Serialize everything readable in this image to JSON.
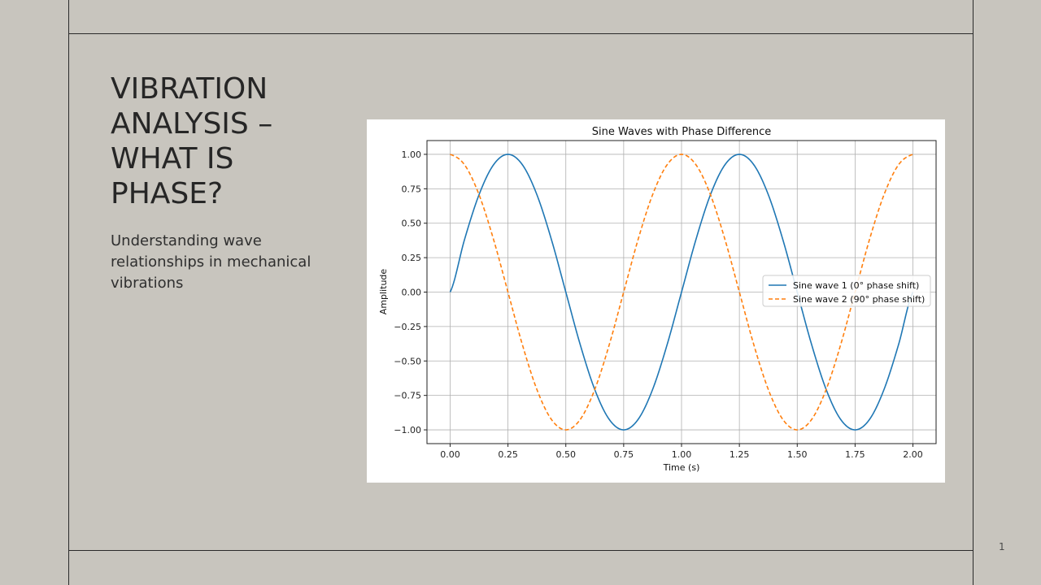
{
  "slide": {
    "title": "VIBRATION ANALYSIS – WHAT IS PHASE?",
    "subtitle": "Understanding wave relationships in mechanical vibrations",
    "page_number": "1"
  },
  "colors": {
    "background": "#c8c5be",
    "rule_lines": "#2a2a2a",
    "series1": "#1f77b4",
    "series2": "#ff7f0e"
  },
  "chart_data": {
    "type": "line",
    "title": "Sine Waves with Phase Difference",
    "xlabel": "Time (s)",
    "ylabel": "Amplitude",
    "xlim": [
      -0.1,
      2.1
    ],
    "ylim": [
      -1.1,
      1.1
    ],
    "x_ticks": [
      0.0,
      0.25,
      0.5,
      0.75,
      1.0,
      1.25,
      1.5,
      1.75,
      2.0
    ],
    "x_tick_labels": [
      "0.00",
      "0.25",
      "0.50",
      "0.75",
      "1.00",
      "1.25",
      "1.50",
      "1.75",
      "2.00"
    ],
    "y_ticks": [
      1.0,
      0.75,
      0.5,
      0.25,
      0.0,
      -0.25,
      -0.5,
      -0.75,
      -1.0
    ],
    "y_tick_labels": [
      "1.00",
      "0.75",
      "0.50",
      "0.25",
      "0.00",
      "−0.25",
      "−0.50",
      "−0.75",
      "−1.00"
    ],
    "grid": true,
    "legend_position": "center-right",
    "x": [
      0.0,
      0.0625,
      0.125,
      0.1875,
      0.25,
      0.3125,
      0.375,
      0.4375,
      0.5,
      0.5625,
      0.625,
      0.6875,
      0.75,
      0.8125,
      0.875,
      0.9375,
      1.0,
      1.0625,
      1.125,
      1.1875,
      1.25,
      1.3125,
      1.375,
      1.4375,
      1.5,
      1.5625,
      1.625,
      1.6875,
      1.75,
      1.8125,
      1.875,
      1.9375,
      2.0
    ],
    "series": [
      {
        "name": "Sine wave 1 (0° phase shift)",
        "color": "#1f77b4",
        "style": "solid",
        "values": [
          0.0,
          0.383,
          0.707,
          0.924,
          1.0,
          0.924,
          0.707,
          0.383,
          0.0,
          -0.383,
          -0.707,
          -0.924,
          -1.0,
          -0.924,
          -0.707,
          -0.383,
          0.0,
          0.383,
          0.707,
          0.924,
          1.0,
          0.924,
          0.707,
          0.383,
          0.0,
          -0.383,
          -0.707,
          -0.924,
          -1.0,
          -0.924,
          -0.707,
          -0.383,
          0.0
        ]
      },
      {
        "name": "Sine wave 2 (90° phase shift)",
        "color": "#ff7f0e",
        "style": "dashed",
        "values": [
          1.0,
          0.924,
          0.707,
          0.383,
          0.0,
          -0.383,
          -0.707,
          -0.924,
          -1.0,
          -0.924,
          -0.707,
          -0.383,
          0.0,
          0.383,
          0.707,
          0.924,
          1.0,
          0.924,
          0.707,
          0.383,
          0.0,
          -0.383,
          -0.707,
          -0.924,
          -1.0,
          -0.924,
          -0.707,
          -0.383,
          0.0,
          0.383,
          0.707,
          0.924,
          1.0
        ]
      }
    ]
  }
}
